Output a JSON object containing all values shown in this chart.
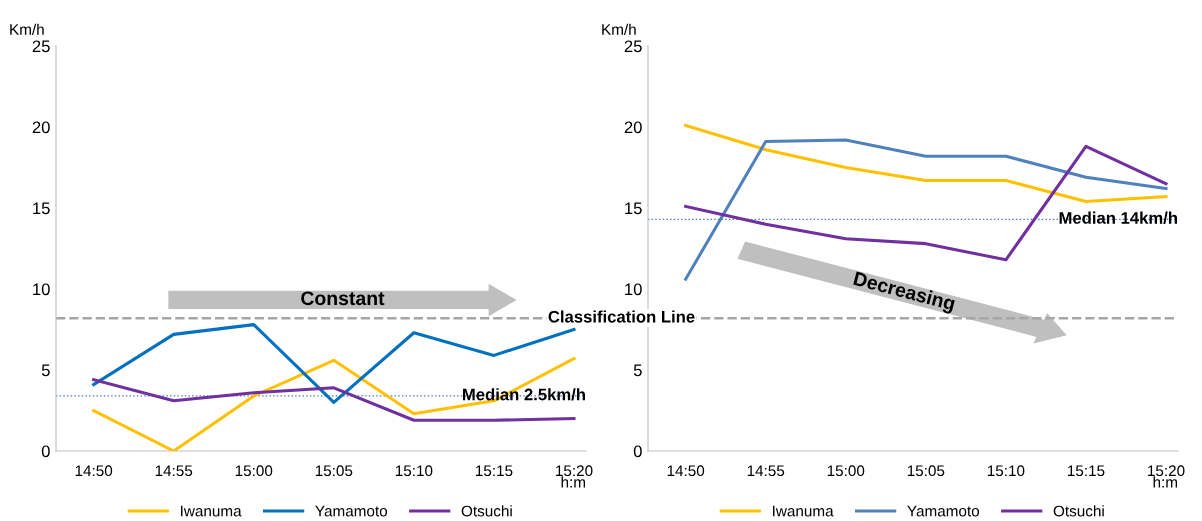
{
  "chart_data": [
    {
      "type": "line",
      "categories": [
        "14:50",
        "14:55",
        "15:00",
        "15:05",
        "15:10",
        "15:15",
        "15:20"
      ],
      "xlabel": "h:m",
      "ylabel": "Km/h",
      "ylim": [
        0,
        25
      ],
      "yticks": [
        0,
        5,
        10,
        15,
        20,
        25
      ],
      "grid": false,
      "legend": "bottom",
      "line_style": "solid",
      "marker": "none",
      "series": [
        {
          "name": "Iwanuma",
          "color": "#ffc000",
          "values": [
            2.5,
            0,
            3.4,
            5.6,
            2.3,
            3.1,
            5.7
          ]
        },
        {
          "name": "Yamamoto",
          "color": "#0070c0",
          "values": [
            4.1,
            7.2,
            7.8,
            3.0,
            7.3,
            5.9,
            7.5
          ]
        },
        {
          "name": "Otsuchi",
          "color": "#7030a0",
          "values": [
            4.4,
            3.1,
            3.6,
            3.9,
            1.9,
            1.9,
            2.0
          ]
        }
      ],
      "ref_lines": [
        {
          "axis": "y",
          "value": 8.2,
          "color": "#a6a6a6",
          "line_style": "dashed"
        },
        {
          "axis": "y",
          "value": 3.4,
          "label": "Median 2.5km/h",
          "color": "#4472c4",
          "line_style": "dotted"
        }
      ],
      "annotations": [
        "Constant"
      ]
    },
    {
      "type": "line",
      "categories": [
        "14:50",
        "14:55",
        "15:00",
        "15:05",
        "15:10",
        "15:15",
        "15:20"
      ],
      "xlabel": "h:m",
      "ylabel": "Km/h",
      "ylim": [
        0,
        25
      ],
      "yticks": [
        0,
        5,
        10,
        15,
        20,
        25
      ],
      "grid": false,
      "legend": "bottom",
      "line_style": "solid",
      "marker": "none",
      "series": [
        {
          "name": "Iwanuma",
          "color": "#ffc000",
          "values": [
            20.1,
            18.6,
            17.5,
            16.7,
            16.7,
            15.4,
            15.7
          ]
        },
        {
          "name": "Yamamoto",
          "color": "#4f81bd",
          "values": [
            10.6,
            19.1,
            19.2,
            18.2,
            18.2,
            16.9,
            16.2
          ]
        },
        {
          "name": "Otsuchi",
          "color": "#7030a0",
          "values": [
            15.1,
            14.0,
            13.1,
            12.8,
            11.8,
            18.8,
            16.5
          ]
        }
      ],
      "ref_lines": [
        {
          "axis": "y",
          "value": 8.2,
          "label": "Classification Line",
          "color": "#a6a6a6",
          "line_style": "dashed"
        },
        {
          "axis": "y",
          "value": 14.3,
          "label": "Median 14km/h",
          "color": "#4472c4",
          "line_style": "dotted"
        }
      ],
      "annotations": [
        "Decreasing"
      ]
    }
  ]
}
